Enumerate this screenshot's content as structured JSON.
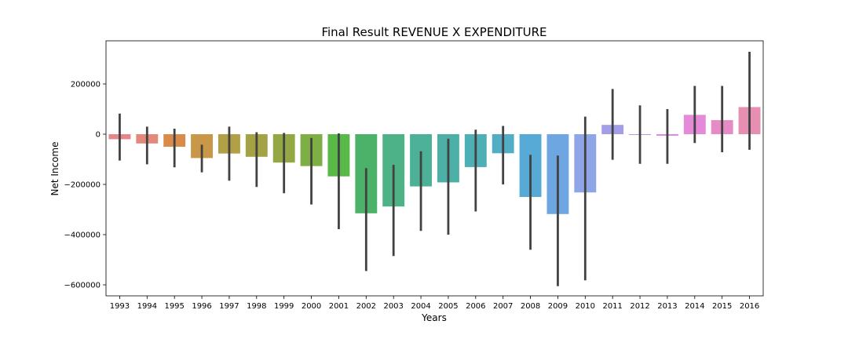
{
  "chart_data": {
    "type": "bar",
    "title": "Final Result REVENUE X EXPENDITURE",
    "xlabel": "Years",
    "ylabel": "Net Income",
    "ylim": [
      -650000,
      370000
    ],
    "y_ticks": [
      200000,
      0,
      -200000,
      -400000,
      -600000
    ],
    "y_tick_labels": [
      "200000",
      "0",
      "−200000",
      "−400000",
      "−600000"
    ],
    "grid": false,
    "legend": "none",
    "categories": [
      "1993",
      "1994",
      "1995",
      "1996",
      "1997",
      "1998",
      "1999",
      "2000",
      "2001",
      "2002",
      "2003",
      "2004",
      "2005",
      "2006",
      "2007",
      "2008",
      "2009",
      "2010",
      "2011",
      "2012",
      "2013",
      "2014",
      "2015",
      "2016"
    ],
    "values": [
      -20000,
      -37000,
      -50000,
      -95000,
      -77000,
      -90000,
      -113000,
      -127000,
      -168000,
      -315000,
      -288000,
      -208000,
      -192000,
      -131000,
      -76000,
      -250000,
      -318000,
      -232000,
      37000,
      -2000,
      -6000,
      77000,
      56000,
      108000
    ],
    "error_low": [
      -105000,
      -120000,
      -132000,
      -152000,
      -185000,
      -210000,
      -235000,
      -280000,
      -378000,
      -545000,
      -485000,
      -385000,
      -400000,
      -308000,
      -200000,
      -460000,
      -605000,
      -582000,
      -102000,
      -118000,
      -118000,
      -35000,
      -72000,
      -62000
    ],
    "error_high": [
      82000,
      30000,
      22000,
      -42000,
      30000,
      8000,
      5000,
      -15000,
      3000,
      -135000,
      -122000,
      -68000,
      -18000,
      18000,
      33000,
      -82000,
      -85000,
      70000,
      180000,
      115000,
      100000,
      192000,
      192000,
      328000
    ],
    "colors": [
      "#e6858a",
      "#e4897a",
      "#d98c4a",
      "#c99748",
      "#b2a047",
      "#a3a346",
      "#93a845",
      "#7daf44",
      "#58b848",
      "#4cb269",
      "#4db386",
      "#4db197",
      "#4db0a6",
      "#4eafb4",
      "#52aec4",
      "#57aad6",
      "#6da6e1",
      "#8fa6e6",
      "#a49ee8",
      "#bd94e6",
      "#d889e4",
      "#e48ad8",
      "#e68bc6",
      "#e68fb3"
    ],
    "error_color": "#424242"
  }
}
